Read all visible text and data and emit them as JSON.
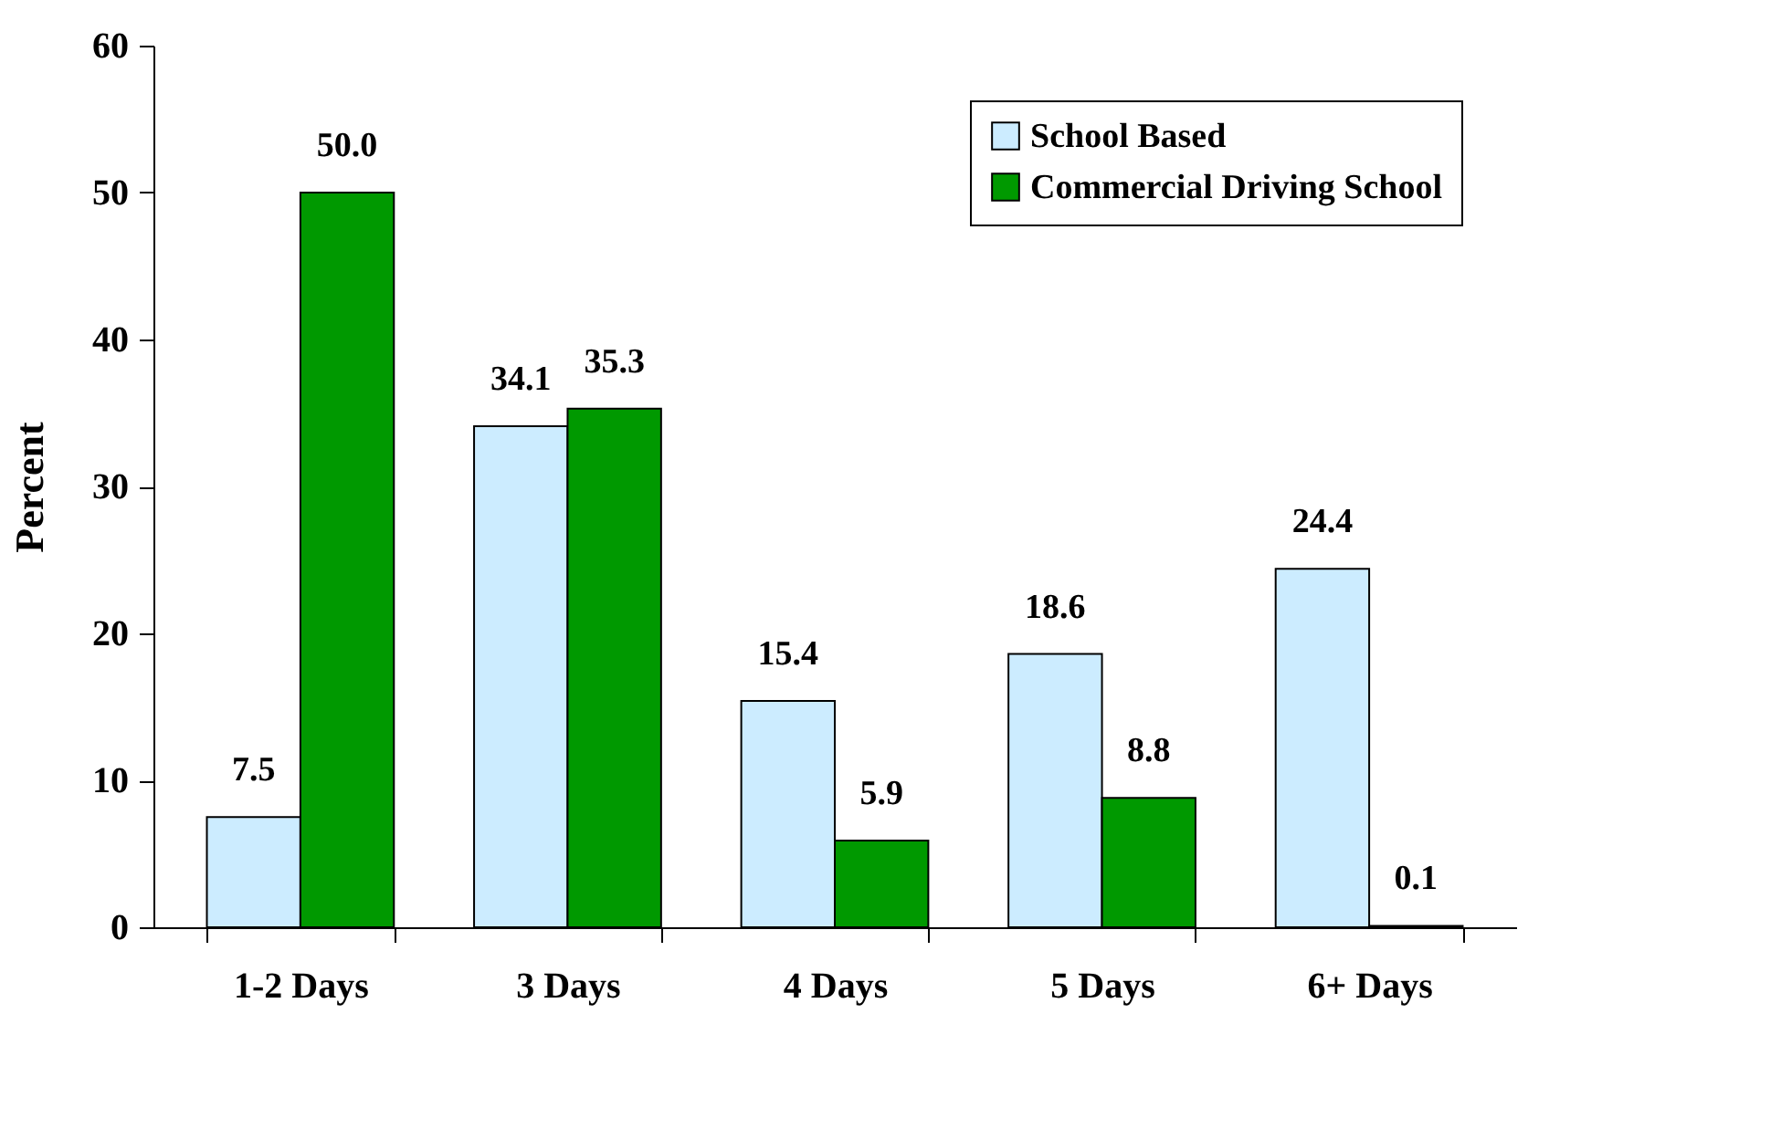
{
  "chart_data": {
    "type": "bar",
    "ylabel": "Percent",
    "categories": [
      "1-2 Days",
      "3 Days",
      "4 Days",
      "5 Days",
      "6+ Days"
    ],
    "series": [
      {
        "name": "School Based",
        "color": "#ccecff",
        "values": [
          7.5,
          34.1,
          15.4,
          18.6,
          24.4
        ]
      },
      {
        "name": "Commercial Driving School",
        "color": "#009900",
        "values": [
          50.0,
          35.3,
          5.9,
          8.8,
          0.1
        ]
      }
    ],
    "value_labels": [
      [
        "7.5",
        "34.1",
        "15.4",
        "18.6",
        "24.4"
      ],
      [
        "50.0",
        "35.3",
        "5.9",
        "8.8",
        "0.1"
      ]
    ],
    "ylim": [
      0,
      60
    ],
    "yticks": [
      0,
      10,
      20,
      30,
      40,
      50,
      60
    ],
    "grid": false,
    "legend": "top right"
  }
}
